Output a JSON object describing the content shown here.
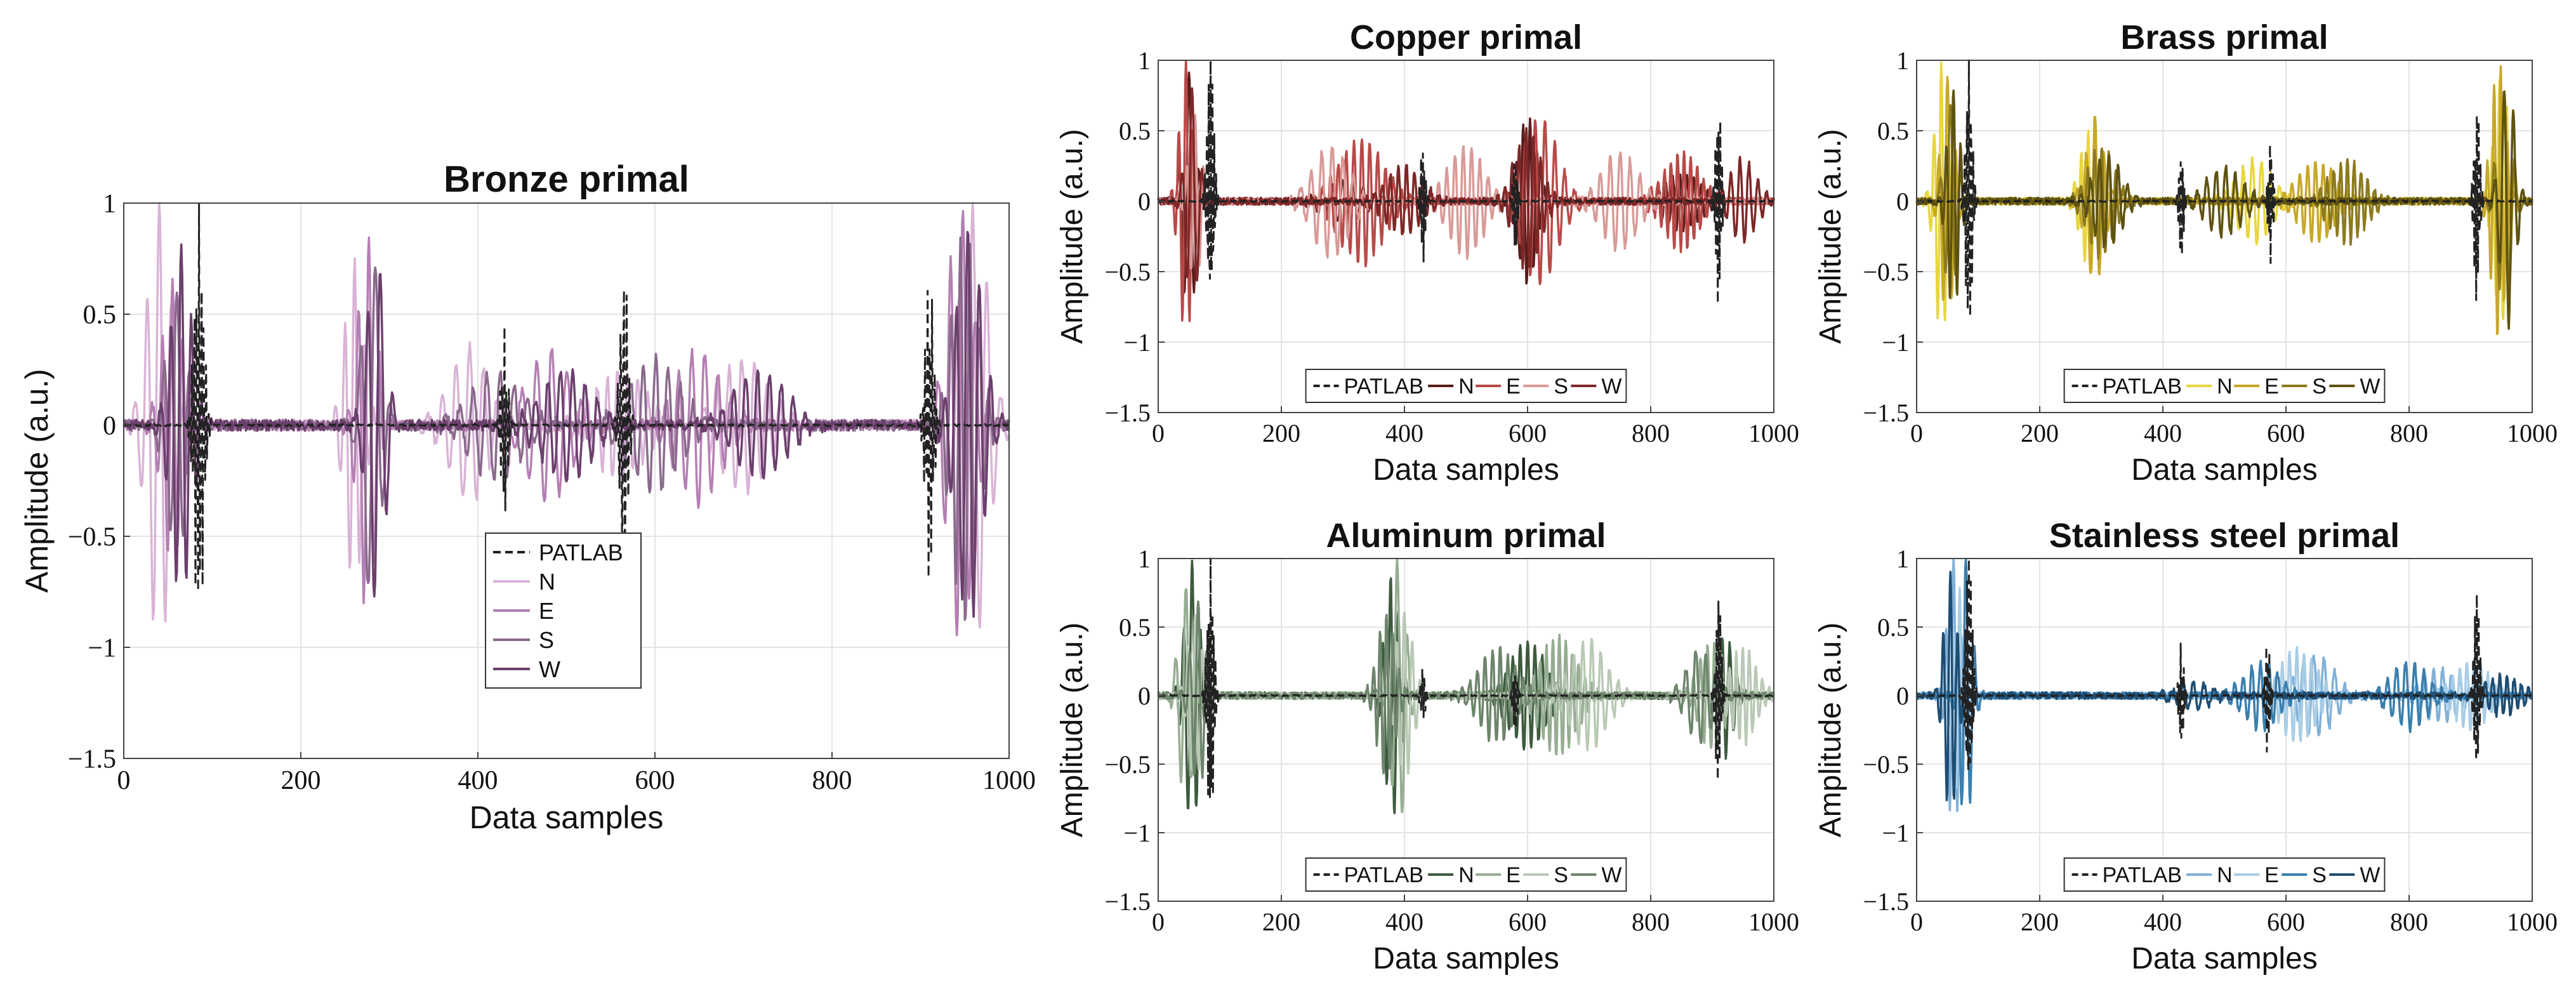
{
  "chart_data": [
    {
      "type": "line",
      "title": "Bronze primal",
      "xlabel": "Data samples",
      "ylabel": "Amplitude (a.u.)",
      "xlim": [
        0,
        1000
      ],
      "ylim": [
        -1.5,
        1
      ],
      "xticks": [
        "0",
        "200",
        "400",
        "600",
        "800",
        "1000"
      ],
      "yticks": [
        "1",
        "0.5",
        "0",
        "−0.5",
        "−1",
        "−1.5"
      ],
      "grid": true,
      "legend": {
        "placement": "lower-center",
        "orientation": "vertical"
      },
      "series": [
        {
          "name": "PATLAB",
          "color": "#222222",
          "dash": true,
          "seed": 11,
          "bursts": [
            [
              85,
              1.0,
              7
            ],
            [
              430,
              0.45,
              5
            ],
            [
              565,
              0.75,
              6
            ],
            [
              910,
              0.75,
              6
            ]
          ]
        },
        {
          "name": "N",
          "color": "#d9b4d6",
          "seed": 21,
          "bursts": [
            [
              40,
              1.0,
              18
            ],
            [
              260,
              0.75,
              14
            ],
            [
              390,
              0.35,
              30
            ],
            [
              560,
              0.25,
              40
            ],
            [
              700,
              0.3,
              40
            ],
            [
              960,
              1.0,
              22
            ]
          ]
        },
        {
          "name": "E",
          "color": "#b57fb3",
          "seed": 31,
          "bursts": [
            [
              55,
              0.65,
              16
            ],
            [
              275,
              0.85,
              14
            ],
            [
              480,
              0.35,
              35
            ],
            [
              650,
              0.35,
              35
            ],
            [
              945,
              1.0,
              20
            ]
          ]
        },
        {
          "name": "S",
          "color": "#8a6a8c",
          "seed": 41,
          "bursts": [
            [
              60,
              0.6,
              16
            ],
            [
              280,
              0.8,
              14
            ],
            [
              420,
              0.25,
              40
            ],
            [
              600,
              0.3,
              40
            ],
            [
              950,
              0.9,
              20
            ]
          ]
        },
        {
          "name": "W",
          "color": "#6b3f6c",
          "seed": 51,
          "bursts": [
            [
              65,
              0.8,
              16
            ],
            [
              285,
              0.8,
              14
            ],
            [
              500,
              0.25,
              40
            ],
            [
              720,
              0.25,
              40
            ],
            [
              955,
              0.9,
              20
            ]
          ]
        }
      ]
    },
    {
      "type": "line",
      "title": "Copper primal",
      "xlabel": "Data samples",
      "ylabel": "Amplitude (a.u.)",
      "xlim": [
        0,
        1000
      ],
      "ylim": [
        -1.5,
        1
      ],
      "xticks": [
        "0",
        "200",
        "400",
        "600",
        "800",
        "1000"
      ],
      "yticks": [
        "1",
        "0.5",
        "0",
        "−0.5",
        "−1",
        "−1.5"
      ],
      "grid": true,
      "legend": {
        "placement": "bottom-center",
        "orientation": "horizontal"
      },
      "series": [
        {
          "name": "PATLAB",
          "color": "#222222",
          "dash": true,
          "seed": 12,
          "bursts": [
            [
              85,
              1.0,
              7
            ],
            [
              430,
              0.45,
              5
            ],
            [
              580,
              0.35,
              5
            ],
            [
              910,
              0.75,
              6
            ]
          ]
        },
        {
          "name": "N",
          "color": "#5a1c1c",
          "seed": 22,
          "bursts": [
            [
              50,
              0.9,
              14
            ],
            [
              300,
              0.15,
              40
            ],
            [
              600,
              0.6,
              20
            ],
            [
              850,
              0.2,
              40
            ]
          ]
        },
        {
          "name": "E",
          "color": "#b84a48",
          "seed": 32,
          "bursts": [
            [
              45,
              1.0,
              14
            ],
            [
              330,
              0.45,
              50
            ],
            [
              620,
              0.6,
              40
            ],
            [
              850,
              0.35,
              40
            ]
          ]
        },
        {
          "name": "S",
          "color": "#d99a98",
          "seed": 42,
          "bursts": [
            [
              60,
              0.6,
              14
            ],
            [
              280,
              0.4,
              40
            ],
            [
              500,
              0.4,
              40
            ],
            [
              750,
              0.35,
              40
            ]
          ]
        },
        {
          "name": "W",
          "color": "#7e2727",
          "seed": 52,
          "bursts": [
            [
              55,
              0.8,
              14
            ],
            [
              400,
              0.25,
              40
            ],
            [
              600,
              0.5,
              30
            ],
            [
              950,
              0.3,
              30
            ]
          ]
        }
      ]
    },
    {
      "type": "line",
      "title": "Brass primal",
      "xlabel": "Data samples",
      "ylabel": "Amplitude (a.u.)",
      "xlim": [
        0,
        1000
      ],
      "ylim": [
        -1.5,
        1
      ],
      "xticks": [
        "0",
        "200",
        "400",
        "600",
        "800",
        "1000"
      ],
      "yticks": [
        "1",
        "0.5",
        "0",
        "−0.5",
        "−1",
        "−1.5"
      ],
      "grid": true,
      "legend": {
        "placement": "bottom-center",
        "orientation": "horizontal"
      },
      "series": [
        {
          "name": "PATLAB",
          "color": "#222222",
          "dash": true,
          "seed": 13,
          "bursts": [
            [
              85,
              1.0,
              7
            ],
            [
              430,
              0.4,
              5
            ],
            [
              575,
              0.45,
              5
            ],
            [
              910,
              0.75,
              6
            ]
          ]
        },
        {
          "name": "N",
          "color": "#e8d640",
          "seed": 23,
          "bursts": [
            [
              40,
              1.0,
              14
            ],
            [
              280,
              0.5,
              20
            ],
            [
              550,
              0.3,
              40
            ],
            [
              950,
              0.9,
              16
            ]
          ]
        },
        {
          "name": "E",
          "color": "#c7a829",
          "seed": 33,
          "bursts": [
            [
              50,
              0.9,
              14
            ],
            [
              290,
              0.6,
              20
            ],
            [
              650,
              0.3,
              40
            ],
            [
              945,
              1.0,
              16
            ]
          ]
        },
        {
          "name": "S",
          "color": "#8c7a1e",
          "seed": 43,
          "bursts": [
            [
              55,
              0.7,
              14
            ],
            [
              300,
              0.4,
              30
            ],
            [
              700,
              0.3,
              40
            ],
            [
              955,
              0.8,
              16
            ]
          ]
        },
        {
          "name": "W",
          "color": "#5e5210",
          "seed": 53,
          "bursts": [
            [
              60,
              0.8,
              14
            ],
            [
              310,
              0.35,
              30
            ],
            [
              500,
              0.25,
              40
            ],
            [
              960,
              0.9,
              16
            ]
          ]
        }
      ]
    },
    {
      "type": "line",
      "title": "Aluminum primal",
      "xlabel": "Data samples",
      "ylabel": "Amplitude (a.u.)",
      "xlim": [
        0,
        1000
      ],
      "ylim": [
        -1.5,
        1
      ],
      "xticks": [
        "0",
        "200",
        "400",
        "600",
        "800",
        "1000"
      ],
      "yticks": [
        "1",
        "0.5",
        "0",
        "−0.5",
        "−1",
        "−1.5"
      ],
      "grid": true,
      "legend": {
        "placement": "bottom-center",
        "orientation": "horizontal"
      },
      "series": [
        {
          "name": "PATLAB",
          "color": "#222222",
          "dash": true,
          "seed": 14,
          "bursts": [
            [
              85,
              1.0,
              7
            ],
            [
              430,
              0.2,
              5
            ],
            [
              580,
              0.25,
              5
            ],
            [
              910,
              0.75,
              6
            ]
          ]
        },
        {
          "name": "N",
          "color": "#3d5a3d",
          "seed": 24,
          "bursts": [
            [
              55,
              1.0,
              16
            ],
            [
              380,
              0.9,
              16
            ],
            [
              600,
              0.4,
              40
            ],
            [
              920,
              0.45,
              20
            ]
          ]
        },
        {
          "name": "E",
          "color": "#96ad92",
          "seed": 34,
          "bursts": [
            [
              45,
              0.8,
              16
            ],
            [
              390,
              1.0,
              16
            ],
            [
              650,
              0.45,
              40
            ],
            [
              900,
              0.4,
              30
            ]
          ]
        },
        {
          "name": "S",
          "color": "#b9c9b5",
          "seed": 44,
          "bursts": [
            [
              60,
              0.6,
              16
            ],
            [
              400,
              0.6,
              20
            ],
            [
              700,
              0.4,
              40
            ],
            [
              950,
              0.35,
              30
            ]
          ]
        },
        {
          "name": "W",
          "color": "#6d856b",
          "seed": 54,
          "bursts": [
            [
              65,
              0.7,
              16
            ],
            [
              370,
              0.6,
              20
            ],
            [
              550,
              0.35,
              40
            ],
            [
              880,
              0.35,
              30
            ]
          ]
        }
      ]
    },
    {
      "type": "line",
      "title": "Stainless steel primal",
      "xlabel": "Data samples",
      "ylabel": "Amplitude (a.u.)",
      "xlim": [
        0,
        1000
      ],
      "ylim": [
        -1.5,
        1
      ],
      "xticks": [
        "0",
        "200",
        "400",
        "600",
        "800",
        "1000"
      ],
      "yticks": [
        "1",
        "0.5",
        "0",
        "−0.5",
        "−1",
        "−1.5"
      ],
      "grid": true,
      "legend": {
        "placement": "bottom-center",
        "orientation": "horizontal"
      },
      "series": [
        {
          "name": "PATLAB",
          "color": "#222222",
          "dash": true,
          "seed": 15,
          "bursts": [
            [
              85,
              1.0,
              7
            ],
            [
              430,
              0.4,
              5
            ],
            [
              570,
              0.45,
              5
            ],
            [
              910,
              0.75,
              6
            ]
          ]
        },
        {
          "name": "N",
          "color": "#7fb0d8",
          "seed": 25,
          "bursts": [
            [
              60,
              1.0,
              14
            ],
            [
              650,
              0.3,
              40
            ],
            [
              850,
              0.2,
              40
            ]
          ]
        },
        {
          "name": "E",
          "color": "#a9cde6",
          "seed": 35,
          "bursts": [
            [
              70,
              0.8,
              14
            ],
            [
              620,
              0.35,
              40
            ],
            [
              900,
              0.25,
              40
            ]
          ]
        },
        {
          "name": "S",
          "color": "#3a7fae",
          "seed": 45,
          "bursts": [
            [
              80,
              1.0,
              14
            ],
            [
              560,
              0.25,
              40
            ],
            [
              800,
              0.25,
              40
            ]
          ]
        },
        {
          "name": "W",
          "color": "#1e4d73",
          "seed": 55,
          "bursts": [
            [
              55,
              0.9,
              14
            ],
            [
              450,
              0.1,
              40
            ],
            [
              950,
              0.15,
              40
            ]
          ]
        }
      ]
    }
  ]
}
